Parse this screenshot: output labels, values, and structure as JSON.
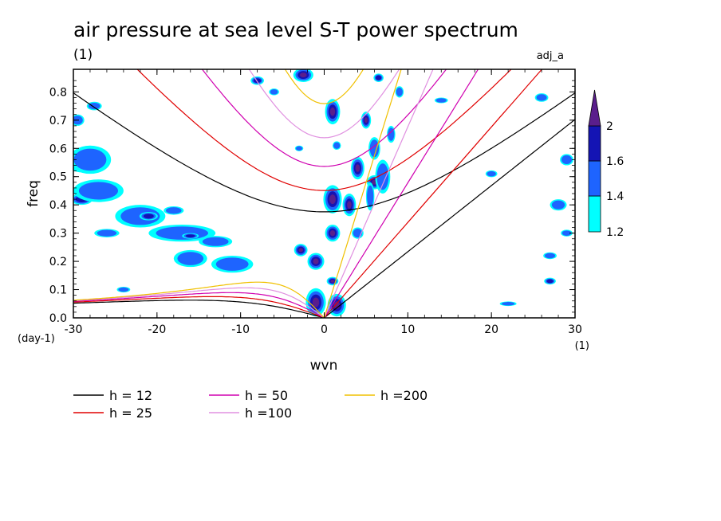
{
  "title": "air pressure at sea level S-T power spectrum",
  "subtitle_left": "(1)",
  "subtitle_right": "adj_a",
  "chart_data": {
    "type": "heatmap",
    "xlabel": "wvn",
    "ylabel": "freq",
    "x_unit": "(1)",
    "y_unit": "(day-1)",
    "xlim": [
      -30,
      30
    ],
    "ylim": [
      0,
      0.88
    ],
    "x_ticks": [
      -30,
      -20,
      -10,
      0,
      10,
      20,
      30
    ],
    "y_ticks": [
      0.0,
      0.1,
      0.2,
      0.3,
      0.4,
      0.5,
      0.6,
      0.7,
      0.8
    ],
    "x_tick_labels": [
      "-30",
      "-20",
      "-10",
      "0",
      "10",
      "20",
      "30"
    ],
    "y_tick_labels": [
      "0.0",
      "0.1",
      "0.2",
      "0.3",
      "0.4",
      "0.5",
      "0.6",
      "0.7",
      "0.8"
    ],
    "colorbar": {
      "levels": [
        1.2,
        1.4,
        1.6,
        2
      ],
      "labels": [
        "1.2",
        "1.4",
        "1.6",
        "2"
      ],
      "colors": [
        "#00ffff",
        "#1e64ff",
        "#1414b4",
        "#5a1e8c"
      ]
    },
    "contour_regions": [
      {
        "x": -29,
        "y": 0.54,
        "rx": 1.4,
        "ry": 0.025,
        "level": 3
      },
      {
        "x": -29,
        "y": 0.42,
        "rx": 1.3,
        "ry": 0.02,
        "level": 2
      },
      {
        "x": -27,
        "y": 0.45,
        "rx": 3,
        "ry": 0.04,
        "level": 1
      },
      {
        "x": -28,
        "y": 0.56,
        "rx": 2.5,
        "ry": 0.05,
        "level": 1
      },
      {
        "x": -29.5,
        "y": 0.7,
        "rx": 0.8,
        "ry": 0.02,
        "level": 1
      },
      {
        "x": -27.5,
        "y": 0.75,
        "rx": 0.9,
        "ry": 0.015,
        "level": 1
      },
      {
        "x": -22,
        "y": 0.36,
        "rx": 3,
        "ry": 0.04,
        "level": 1
      },
      {
        "x": -21,
        "y": 0.36,
        "rx": 1.1,
        "ry": 0.015,
        "level": 2
      },
      {
        "x": -17,
        "y": 0.3,
        "rx": 4,
        "ry": 0.03,
        "level": 1
      },
      {
        "x": -16,
        "y": 0.29,
        "rx": 1,
        "ry": 0.01,
        "level": 2
      },
      {
        "x": -13,
        "y": 0.27,
        "rx": 2,
        "ry": 0.02,
        "level": 1
      },
      {
        "x": -16,
        "y": 0.21,
        "rx": 2,
        "ry": 0.03,
        "level": 1
      },
      {
        "x": -11,
        "y": 0.19,
        "rx": 2.5,
        "ry": 0.03,
        "level": 1
      },
      {
        "x": -26,
        "y": 0.3,
        "rx": 1.5,
        "ry": 0.015,
        "level": 1
      },
      {
        "x": -18,
        "y": 0.38,
        "rx": 1.2,
        "ry": 0.015,
        "level": 1
      },
      {
        "x": -8,
        "y": 0.84,
        "rx": 0.8,
        "ry": 0.015,
        "level": 2
      },
      {
        "x": -6,
        "y": 0.8,
        "rx": 0.6,
        "ry": 0.012,
        "level": 1
      },
      {
        "x": -2.5,
        "y": 0.86,
        "rx": 1.2,
        "ry": 0.025,
        "level": 3
      },
      {
        "x": 1,
        "y": 0.73,
        "rx": 0.9,
        "ry": 0.045,
        "level": 3
      },
      {
        "x": 5,
        "y": 0.7,
        "rx": 0.6,
        "ry": 0.03,
        "level": 3
      },
      {
        "x": 6.5,
        "y": 0.85,
        "rx": 0.6,
        "ry": 0.015,
        "level": 2
      },
      {
        "x": 4,
        "y": 0.53,
        "rx": 0.8,
        "ry": 0.04,
        "level": 3
      },
      {
        "x": 6,
        "y": 0.48,
        "rx": 0.9,
        "ry": 0.025,
        "level": 3
      },
      {
        "x": 1,
        "y": 0.42,
        "rx": 1.1,
        "ry": 0.05,
        "level": 3
      },
      {
        "x": 3,
        "y": 0.4,
        "rx": 0.8,
        "ry": 0.04,
        "level": 3
      },
      {
        "x": 1,
        "y": 0.3,
        "rx": 0.9,
        "ry": 0.03,
        "level": 3
      },
      {
        "x": 4,
        "y": 0.3,
        "rx": 0.7,
        "ry": 0.02,
        "level": 1
      },
      {
        "x": -2.8,
        "y": 0.24,
        "rx": 0.8,
        "ry": 0.022,
        "level": 3
      },
      {
        "x": -1,
        "y": 0.2,
        "rx": 1,
        "ry": 0.03,
        "level": 3
      },
      {
        "x": 1,
        "y": 0.13,
        "rx": 0.7,
        "ry": 0.015,
        "level": 3
      },
      {
        "x": -1,
        "y": 0.055,
        "rx": 1.2,
        "ry": 0.05,
        "level": 3
      },
      {
        "x": 1.5,
        "y": 0.045,
        "rx": 1.1,
        "ry": 0.04,
        "level": 3
      },
      {
        "x": 6,
        "y": 0.6,
        "rx": 0.7,
        "ry": 0.04,
        "level": 1
      },
      {
        "x": 7,
        "y": 0.5,
        "rx": 0.9,
        "ry": 0.06,
        "level": 1
      },
      {
        "x": 5.5,
        "y": 0.43,
        "rx": 0.5,
        "ry": 0.05,
        "level": 1
      },
      {
        "x": 8,
        "y": 0.65,
        "rx": 0.5,
        "ry": 0.03,
        "level": 1
      },
      {
        "x": 9,
        "y": 0.8,
        "rx": 0.5,
        "ry": 0.02,
        "level": 1
      },
      {
        "x": 1.5,
        "y": 0.61,
        "rx": 0.5,
        "ry": 0.015,
        "level": 1
      },
      {
        "x": 27,
        "y": 0.22,
        "rx": 0.8,
        "ry": 0.012,
        "level": 1
      },
      {
        "x": 28,
        "y": 0.4,
        "rx": 1,
        "ry": 0.02,
        "level": 1
      },
      {
        "x": 29,
        "y": 0.56,
        "rx": 0.8,
        "ry": 0.02,
        "level": 1
      },
      {
        "x": 29,
        "y": 0.3,
        "rx": 0.7,
        "ry": 0.012,
        "level": 1
      },
      {
        "x": 26,
        "y": 0.78,
        "rx": 0.8,
        "ry": 0.015,
        "level": 1
      },
      {
        "x": 22,
        "y": 0.05,
        "rx": 1,
        "ry": 0.008,
        "level": 1
      },
      {
        "x": 27,
        "y": 0.13,
        "rx": 0.7,
        "ry": 0.012,
        "level": 2
      },
      {
        "x": 20,
        "y": 0.51,
        "rx": 0.7,
        "ry": 0.012,
        "level": 1
      },
      {
        "x": 14,
        "y": 0.77,
        "rx": 0.8,
        "ry": 0.01,
        "level": 1
      },
      {
        "x": -3,
        "y": 0.6,
        "rx": 0.5,
        "ry": 0.01,
        "level": 1
      },
      {
        "x": -24,
        "y": 0.1,
        "rx": 0.8,
        "ry": 0.01,
        "level": 1
      }
    ],
    "series": [
      {
        "name": "h = 12",
        "h": 12,
        "color": "#000000"
      },
      {
        "name": "h = 25",
        "h": 25,
        "color": "#e00000"
      },
      {
        "name": "h = 50",
        "h": 50,
        "color": "#d000b0"
      },
      {
        "name": "h =100",
        "h": 100,
        "color": "#e090e0"
      },
      {
        "name": "h =200",
        "h": 200,
        "color": "#f0c000"
      }
    ]
  }
}
